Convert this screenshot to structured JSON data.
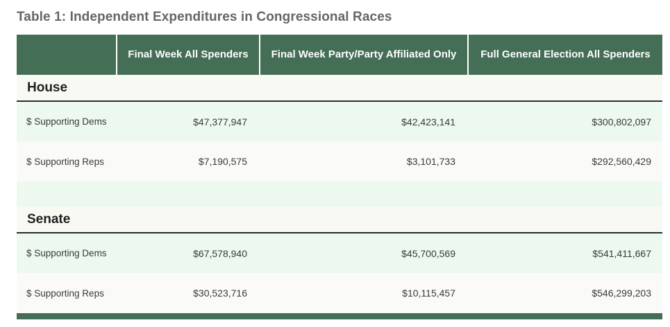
{
  "caption": "Table 1: Independent Expenditures in Congressional Races",
  "columns": [
    "",
    "Final Week All Spenders",
    "Final Week Party/Party Affiliated Only",
    "Full General Election All Spenders"
  ],
  "sections": [
    {
      "title": "House",
      "rows": [
        {
          "label": "$ Supporting Dems",
          "values": [
            "$47,377,947",
            "$42,423,141",
            "$300,802,097"
          ]
        },
        {
          "label": "$ Supporting Reps",
          "values": [
            "$7,190,575",
            "$3,101,733",
            "$292,560,429"
          ]
        }
      ]
    },
    {
      "title": "Senate",
      "rows": [
        {
          "label": "$ Supporting Dems",
          "values": [
            "$67,578,940",
            "$45,700,569",
            "$541,411,667"
          ]
        },
        {
          "label": "$ Supporting Reps",
          "values": [
            "$30,523,716",
            "$10,115,457",
            "$546,299,203"
          ]
        }
      ]
    }
  ],
  "colors": {
    "header_bg": "#456e57",
    "stripe_green": "#edf8ee",
    "stripe_white": "#fafbf8",
    "caption_text": "#666666"
  }
}
